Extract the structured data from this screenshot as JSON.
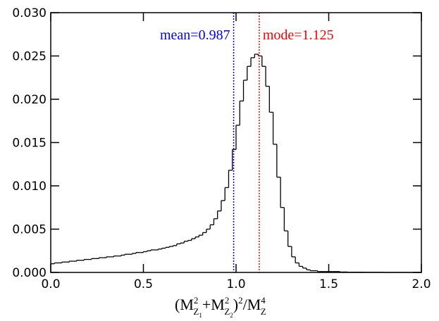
{
  "chart_data": {
    "type": "histogram",
    "bins": [
      0,
      0.02,
      0.04,
      0.06,
      0.08,
      0.1,
      0.12,
      0.14,
      0.16,
      0.18,
      0.2,
      0.22,
      0.24,
      0.26,
      0.28,
      0.3,
      0.32,
      0.34,
      0.36,
      0.38,
      0.4,
      0.42,
      0.44,
      0.46,
      0.48,
      0.5,
      0.52,
      0.54,
      0.56,
      0.58,
      0.6,
      0.62,
      0.64,
      0.66,
      0.68,
      0.7,
      0.72,
      0.74,
      0.76,
      0.78,
      0.8,
      0.82,
      0.84,
      0.86,
      0.88,
      0.9,
      0.92,
      0.94,
      0.96,
      0.98,
      1.0,
      1.02,
      1.04,
      1.06,
      1.08,
      1.1,
      1.12,
      1.14,
      1.16,
      1.18,
      1.2,
      1.22,
      1.24,
      1.26,
      1.28,
      1.3,
      1.32,
      1.34,
      1.36,
      1.38,
      1.4,
      1.42,
      1.44,
      1.46,
      1.48,
      1.5,
      1.52,
      1.54,
      1.56,
      1.58,
      1.6,
      1.62,
      1.64,
      1.66,
      1.68,
      1.7,
      1.72,
      1.74,
      1.76,
      1.78,
      1.8,
      1.82,
      1.84,
      1.86,
      1.88,
      1.9,
      1.92,
      1.94,
      1.96,
      1.98,
      2.0
    ],
    "values": [
      0.001,
      0.0011,
      0.0011,
      0.0012,
      0.0012,
      0.0013,
      0.0013,
      0.0014,
      0.0014,
      0.0015,
      0.0015,
      0.0016,
      0.0016,
      0.0017,
      0.0017,
      0.0018,
      0.0018,
      0.0019,
      0.0019,
      0.002,
      0.0021,
      0.0021,
      0.0022,
      0.0023,
      0.0023,
      0.0024,
      0.0025,
      0.0026,
      0.0026,
      0.0027,
      0.0028,
      0.0029,
      0.003,
      0.0031,
      0.0033,
      0.0034,
      0.0036,
      0.0037,
      0.0039,
      0.0041,
      0.0043,
      0.0046,
      0.005,
      0.0055,
      0.0062,
      0.0071,
      0.0083,
      0.0098,
      0.0118,
      0.0142,
      0.017,
      0.0198,
      0.0222,
      0.0238,
      0.0248,
      0.0252,
      0.025,
      0.0238,
      0.0215,
      0.0185,
      0.0148,
      0.011,
      0.0075,
      0.0048,
      0.003,
      0.0018,
      0.0011,
      0.0007,
      0.0005,
      0.0003,
      0.0002,
      0.0002,
      0.0001,
      0.0001,
      0.0001,
      0.0001,
      0.0001,
      0.0001,
      5e-05,
      5e-05,
      3e-05,
      3e-05,
      3e-05,
      3e-05,
      3e-05,
      2e-05,
      2e-05,
      2e-05,
      2e-05,
      2e-05,
      0,
      0,
      0,
      0,
      0,
      0,
      0,
      0,
      0,
      0
    ],
    "color": "#000000",
    "xlim": [
      0,
      2
    ],
    "ylim": [
      0,
      0.03
    ],
    "xticks": [
      {
        "value": 0,
        "label": "0.0"
      },
      0.5,
      {
        "value": 1,
        "label": "1.0"
      },
      1.5,
      {
        "value": 2,
        "label": "2.0"
      }
    ],
    "yticks": [
      {
        "value": 0,
        "label": "0.000"
      },
      {
        "value": 0.005,
        "label": "0.005"
      },
      {
        "value": 0.01,
        "label": "0.010"
      },
      {
        "value": 0.015,
        "label": "0.015"
      },
      {
        "value": 0.02,
        "label": "0.020"
      },
      {
        "value": 0.025,
        "label": "0.025"
      },
      {
        "value": 0.03,
        "label": "0.030"
      }
    ],
    "xlabel": [
      {
        "text": "(M",
        "pos": "base"
      },
      {
        "text": "2",
        "pos": "sup"
      },
      {
        "text": "Z",
        "pos": "sub"
      },
      {
        "text": "1",
        "pos": "subsub"
      },
      {
        "text": "+M",
        "pos": "base"
      },
      {
        "text": "2",
        "pos": "sup"
      },
      {
        "text": "Z",
        "pos": "sub"
      },
      {
        "text": "2",
        "pos": "subsub"
      },
      {
        "text": ")",
        "pos": "base"
      },
      {
        "text": "2",
        "pos": "sup"
      },
      {
        "text": "/M",
        "pos": "base"
      },
      {
        "text": "4",
        "pos": "sup"
      },
      {
        "text": "Z",
        "pos": "sub"
      }
    ],
    "vlines": [
      {
        "x": 0.987,
        "label": "mean=0.987",
        "color": "#0000ff",
        "side": "left"
      },
      {
        "x": 1.125,
        "label": "mode=1.125",
        "color": "#ff0000",
        "side": "right"
      }
    ]
  }
}
